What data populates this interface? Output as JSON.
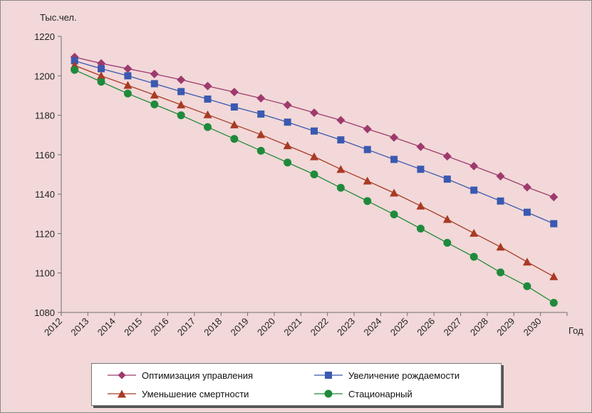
{
  "chart_data": {
    "type": "line",
    "ylabel": "Тыс.чел.",
    "xlabel": "Год",
    "ylim": [
      1080,
      1220
    ],
    "yticks": [
      1080,
      1100,
      1120,
      1140,
      1160,
      1180,
      1200,
      1220
    ],
    "x": [
      "2012",
      "2013",
      "2014",
      "2015",
      "2016",
      "2017",
      "2018",
      "2019",
      "2020",
      "2021",
      "2022",
      "2023",
      "2024",
      "2025",
      "2026",
      "2027",
      "2028",
      "2029",
      "2030"
    ],
    "grid": false,
    "legend_position": "bottom",
    "series": [
      {
        "name": "Оптимизация управления",
        "color": "#9e3a6e",
        "marker": "diamond",
        "values": [
          1209.5,
          1206.3,
          1203.6,
          1200.9,
          1198.0,
          1194.8,
          1191.8,
          1188.6,
          1185.2,
          1181.3,
          1177.5,
          1173.0,
          1168.7,
          1164.0,
          1159.2,
          1154.2,
          1149.1,
          1143.5,
          1138.5
        ]
      },
      {
        "name": "Увеличение рождаемости",
        "color": "#3a59b0",
        "marker": "square",
        "values": [
          1207.6,
          1203.6,
          1200.0,
          1196.0,
          1192.0,
          1188.2,
          1184.2,
          1180.6,
          1176.5,
          1172.0,
          1167.5,
          1162.6,
          1157.6,
          1152.6,
          1147.6,
          1142.0,
          1136.5,
          1130.8,
          1125.0
        ]
      },
      {
        "name": "Уменьшение смертности",
        "color": "#a93a24",
        "marker": "triangle",
        "values": [
          1205.3,
          1200.0,
          1195.2,
          1190.3,
          1185.3,
          1180.3,
          1175.2,
          1170.2,
          1164.6,
          1159.0,
          1152.6,
          1146.7,
          1140.6,
          1134.0,
          1127.2,
          1120.2,
          1113.2,
          1105.6,
          1098.2
        ]
      },
      {
        "name": "Стационарный",
        "color": "#1f8a3c",
        "marker": "circle",
        "values": [
          1203.0,
          1197.0,
          1191.0,
          1185.5,
          1180.0,
          1174.0,
          1168.0,
          1162.0,
          1156.0,
          1150.0,
          1143.2,
          1136.5,
          1129.7,
          1122.5,
          1115.3,
          1108.2,
          1100.3,
          1093.3,
          1084.9
        ]
      }
    ]
  }
}
